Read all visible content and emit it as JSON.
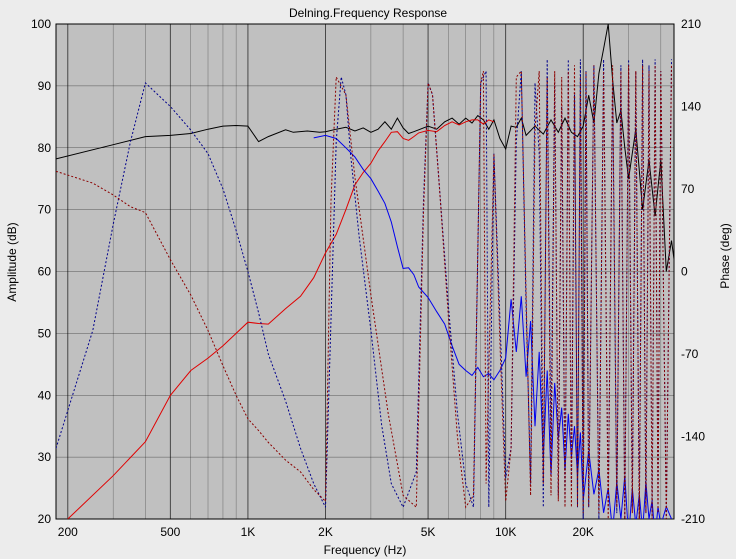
{
  "chart_data": {
    "type": "line",
    "title": "Delning.Frequency Response",
    "xlabel": "Frequency (Hz)",
    "ylabel": "Amplitude (dB)",
    "y2label": "Phase (deg)",
    "xscale": "log",
    "xlim": [
      180,
      45000
    ],
    "ylim": [
      20,
      100
    ],
    "y2lim": [
      -210,
      210
    ],
    "grid": true,
    "plot_background": "#c0c0c0",
    "x_ticks": [
      {
        "value": 200,
        "label": "200"
      },
      {
        "value": 500,
        "label": "500"
      },
      {
        "value": 1000,
        "label": "1K"
      },
      {
        "value": 2000,
        "label": "2K"
      },
      {
        "value": 5000,
        "label": "5K"
      },
      {
        "value": 10000,
        "label": "10K"
      },
      {
        "value": 20000,
        "label": "20K"
      }
    ],
    "y_ticks": [
      {
        "value": 20,
        "label": "20"
      },
      {
        "value": 30,
        "label": "30"
      },
      {
        "value": 40,
        "label": "40"
      },
      {
        "value": 50,
        "label": "50"
      },
      {
        "value": 60,
        "label": "60"
      },
      {
        "value": 70,
        "label": "70"
      },
      {
        "value": 80,
        "label": "80"
      },
      {
        "value": 90,
        "label": "90"
      },
      {
        "value": 100,
        "label": "100"
      }
    ],
    "y2_ticks": [
      {
        "value": 210,
        "label": "210"
      },
      {
        "value": 140,
        "label": "140"
      },
      {
        "value": 70,
        "label": "70"
      },
      {
        "value": 0,
        "label": "0"
      },
      {
        "value": -70,
        "label": "-70"
      },
      {
        "value": -140,
        "label": "-140"
      },
      {
        "value": -210,
        "label": "-210"
      }
    ],
    "series": [
      {
        "color": "#000000",
        "axis": "amplitude",
        "style": "solid",
        "x": [
          180,
          300,
          400,
          500,
          600,
          700,
          800,
          900,
          1000,
          1100,
          1200,
          1400,
          1500,
          1700,
          1900,
          2000,
          2200,
          2400,
          2600,
          2800,
          3000,
          3200,
          3400,
          3600,
          3800,
          4000,
          4200,
          4400,
          4600,
          5000,
          5400,
          5800,
          6200,
          6600,
          7000,
          7400,
          7800,
          8200,
          8600,
          9000,
          9500,
          10000,
          10500,
          11000,
          11500,
          12000,
          13000,
          14000,
          15000,
          16000,
          17000,
          18000,
          19000,
          20000,
          21000,
          22000,
          23000,
          24000,
          25000,
          26000,
          27000,
          28000,
          29000,
          30000,
          32000,
          34000,
          36000,
          38000,
          40000,
          42000,
          44000,
          45000
        ],
        "values": [
          78.2,
          80.5,
          81.8,
          82,
          82.3,
          83,
          83.5,
          83.6,
          83.5,
          81,
          81.8,
          82.9,
          82.5,
          82.7,
          82.5,
          82.6,
          83,
          83.3,
          82.7,
          83.2,
          82.5,
          83,
          84.2,
          83,
          84.8,
          83.2,
          82.3,
          82.6,
          82.9,
          83.5,
          83,
          84.2,
          84.8,
          83.8,
          84.8,
          84,
          85.2,
          84.5,
          83,
          84.5,
          81.5,
          79.8,
          83.5,
          83.3,
          84.8,
          82,
          83.5,
          82.2,
          84.5,
          82.5,
          84.8,
          82.5,
          81.8,
          83.5,
          88.5,
          84,
          92,
          96,
          100,
          91,
          84,
          86,
          80,
          75,
          83,
          70,
          78,
          69,
          78,
          60,
          65,
          62
        ]
      },
      {
        "color": "#e00000",
        "axis": "amplitude",
        "style": "solid",
        "x": [
          200,
          300,
          400,
          500,
          600,
          700,
          800,
          900,
          1000,
          1100,
          1200,
          1400,
          1600,
          1800,
          2000,
          2200,
          2400,
          2600,
          2800,
          3000,
          3200,
          3400,
          3600,
          3800,
          4000,
          4200,
          4400,
          4600,
          5000,
          5400,
          5800,
          6200,
          6600,
          7000,
          7400,
          7800,
          8200,
          8600,
          9000
        ],
        "values": [
          20,
          27,
          32.5,
          40,
          44,
          46,
          48,
          50,
          51.8,
          51.6,
          51.5,
          54,
          56,
          59,
          63,
          66,
          70,
          74,
          76,
          77.5,
          79.5,
          81,
          82.5,
          82.6,
          81.5,
          81.2,
          81.8,
          82.4,
          82.8,
          82.6,
          83.6,
          84.2,
          83.7,
          84.2,
          84.5,
          84.5,
          83.8,
          84.5,
          84.2
        ]
      },
      {
        "color": "#0000ee",
        "axis": "amplitude",
        "style": "solid",
        "x": [
          1800,
          2000,
          2200,
          2400,
          2600,
          2800,
          3000,
          3200,
          3400,
          3600,
          3800,
          4000,
          4200,
          4400,
          4600,
          5000,
          5400,
          5800,
          6200,
          6600,
          7000,
          7400,
          7800,
          8200,
          8600,
          9000,
          9500,
          10000,
          10500,
          11000,
          11500,
          12000,
          12500,
          13000,
          13500,
          14000,
          14500,
          15000,
          15500,
          16000,
          16500,
          17000,
          17500,
          18000,
          18500,
          19000,
          19500,
          20000,
          21000,
          22000,
          23000,
          24000,
          25000,
          26000,
          27000,
          28000,
          29000,
          30000,
          31000,
          32000,
          33000,
          34000,
          35000,
          36000,
          37000,
          38000,
          39000,
          40000,
          42000,
          44000
        ],
        "values": [
          81.6,
          82,
          81.5,
          80,
          78.5,
          76.5,
          75,
          73,
          71,
          68,
          64,
          60.5,
          60.6,
          59.5,
          57.5,
          55.8,
          53.5,
          51.5,
          48,
          45,
          44,
          43.2,
          44.5,
          43,
          43.5,
          42.5,
          44,
          46,
          55.5,
          47,
          56,
          43,
          52,
          35,
          47,
          30,
          44,
          27,
          42,
          33,
          38,
          28,
          37,
          30,
          35,
          27,
          34,
          23,
          31,
          24,
          28,
          21,
          25,
          18,
          26,
          20,
          27,
          17,
          25,
          19,
          24,
          18,
          26,
          20,
          23,
          17,
          22,
          19,
          22,
          20
        ]
      },
      {
        "color": "#00008b",
        "axis": "phase",
        "style": "dotted",
        "x": [
          180,
          250,
          300,
          350,
          400,
          500,
          600,
          700,
          800,
          900,
          1000,
          1100,
          1200,
          1400,
          1600,
          1800,
          2000,
          2200,
          2300,
          2400,
          2500,
          2700,
          3000,
          3300,
          3600,
          4000,
          4500,
          4800,
          5000,
          5200,
          5500,
          6000,
          6500,
          7000,
          7500,
          8000,
          8400,
          8600,
          9000,
          9500,
          10000,
          10500,
          11000,
          11500,
          12000,
          12500,
          13000,
          13500,
          14000,
          14500,
          15000,
          15500,
          16000,
          16500,
          17000,
          17500,
          18000,
          18500,
          19000,
          19500,
          20000,
          20500,
          21000,
          22000,
          23000,
          24000,
          25000,
          26000,
          27000,
          28000,
          29000,
          30000,
          31000,
          32000,
          33000,
          34000,
          35000,
          36000,
          37000,
          38000,
          39000,
          40000,
          42000,
          44000
        ],
        "values": [
          -150,
          -50,
          40,
          110,
          160,
          140,
          120,
          100,
          70,
          35,
          0,
          -35,
          -70,
          -110,
          -150,
          -180,
          -200,
          110,
          165,
          150,
          100,
          30,
          -50,
          -130,
          -180,
          -200,
          -170,
          60,
          160,
          150,
          80,
          -30,
          -120,
          -180,
          -200,
          160,
          170,
          -200,
          100,
          -40,
          -175,
          -150,
          110,
          170,
          -30,
          -180,
          160,
          100,
          -200,
          180,
          -150,
          160,
          -190,
          140,
          -200,
          180,
          -180,
          150,
          -200,
          180,
          -210,
          170,
          -200,
          175,
          -210,
          180,
          -200,
          160,
          -205,
          175,
          -210,
          180,
          -200,
          170,
          -210,
          180,
          -205,
          175,
          -210,
          180,
          -200,
          170,
          -210,
          180
        ]
      },
      {
        "color": "#8b0000",
        "axis": "phase",
        "style": "dotted",
        "x": [
          180,
          250,
          300,
          350,
          400,
          500,
          600,
          700,
          800,
          900,
          1000,
          1100,
          1200,
          1400,
          1600,
          1800,
          2000,
          2100,
          2200,
          2400,
          2600,
          3000,
          3500,
          4000,
          4500,
          4800,
          5000,
          5200,
          5500,
          6000,
          6500,
          7000,
          7500,
          8000,
          8200,
          8400,
          9000,
          9500,
          10000,
          10500,
          11000,
          11500,
          12000,
          12500,
          13000,
          13500,
          14000,
          14500,
          15000,
          15500,
          16000,
          16500,
          17000,
          17500,
          18000,
          18500,
          19000,
          19500,
          20000,
          20500,
          21000,
          22000,
          23000,
          24000,
          25000,
          26000,
          27000,
          28000,
          29000,
          30000,
          31000,
          32000,
          33000,
          34000,
          35000,
          36000,
          37000,
          38000,
          39000,
          40000,
          42000,
          44000
        ],
        "values": [
          85,
          75,
          65,
          55,
          50,
          10,
          -20,
          -50,
          -80,
          -105,
          -125,
          -135,
          -145,
          -160,
          -170,
          -185,
          -195,
          60,
          165,
          150,
          80,
          -20,
          -120,
          -190,
          -200,
          50,
          160,
          150,
          80,
          -40,
          -140,
          -200,
          -190,
          160,
          170,
          -180,
          100,
          -60,
          -195,
          -150,
          165,
          170,
          -20,
          -190,
          120,
          170,
          -180,
          165,
          -190,
          170,
          -195,
          165,
          -200,
          170,
          -200,
          175,
          -200,
          165,
          -205,
          170,
          -200,
          175,
          -205,
          170,
          -210,
          175,
          -200,
          170,
          -210,
          175,
          -205,
          170,
          -210,
          175,
          -205,
          170,
          -210,
          175,
          -205,
          170,
          -210,
          175
        ]
      }
    ]
  }
}
